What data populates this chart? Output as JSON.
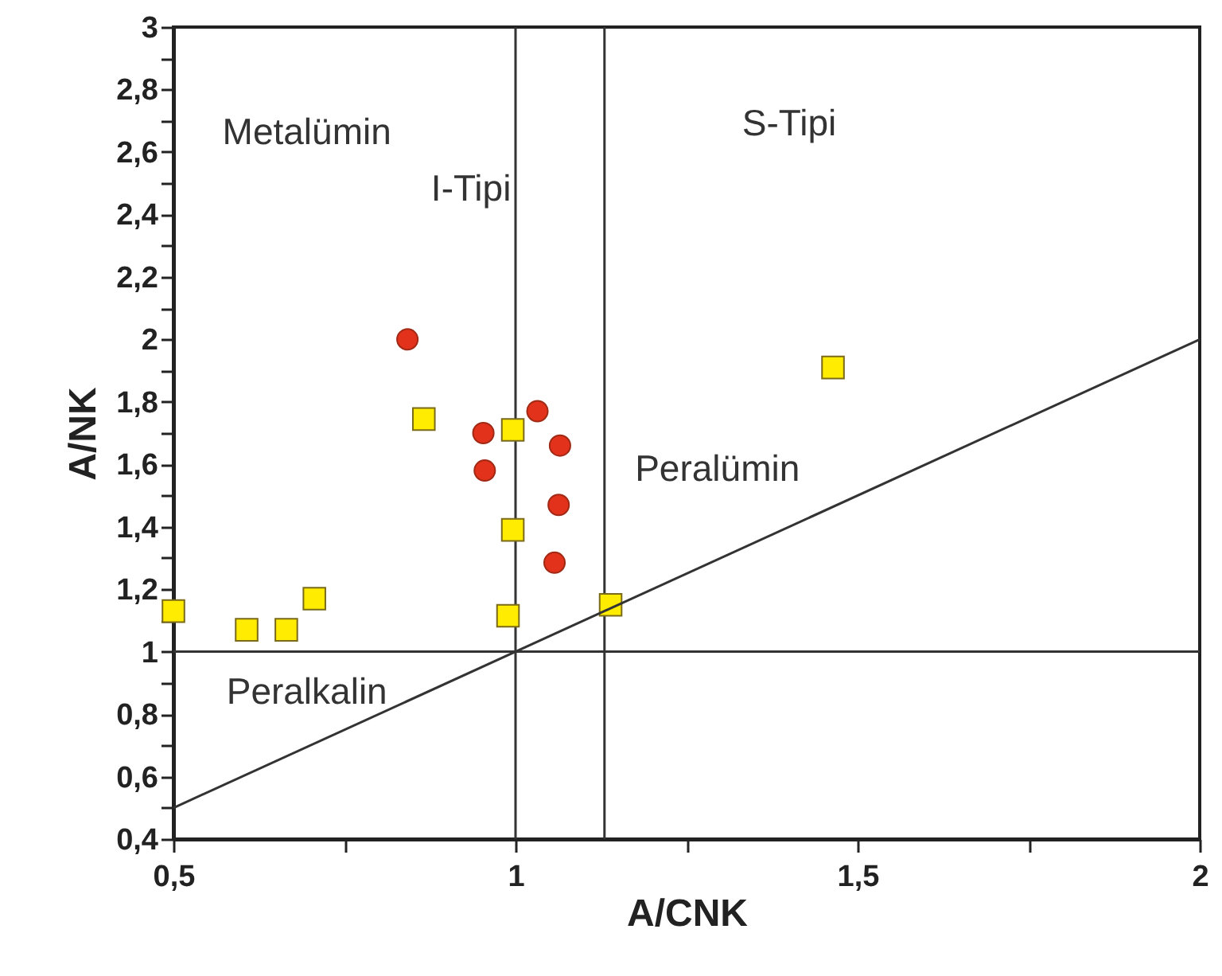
{
  "chart_data": {
    "type": "scatter",
    "xlabel": "A/CNK",
    "ylabel": "A/NK",
    "xlim": [
      0.5,
      2
    ],
    "ylim": [
      0.4,
      3
    ],
    "xticks": [
      {
        "value": 0.5,
        "label": "0,5"
      },
      1,
      {
        "value": 0.75,
        "label": null
      },
      {
        "value": 1.25,
        "label": null
      },
      {
        "value": 1.5,
        "label": "1,5"
      },
      {
        "value": 1.75,
        "label": null
      },
      2
    ],
    "yticks": [
      {
        "value": 0.4,
        "label": "0,4"
      },
      {
        "value": 0.5,
        "label": null
      },
      {
        "value": 0.6,
        "label": "0,6"
      },
      {
        "value": 0.7,
        "label": null
      },
      {
        "value": 0.8,
        "label": "0,8"
      },
      {
        "value": 0.9,
        "label": null
      },
      1,
      {
        "value": 1.1,
        "label": null
      },
      {
        "value": 1.2,
        "label": "1,2"
      },
      {
        "value": 1.3,
        "label": null
      },
      {
        "value": 1.4,
        "label": "1,4"
      },
      {
        "value": 1.5,
        "label": null
      },
      {
        "value": 1.6,
        "label": "1,6"
      },
      {
        "value": 1.7,
        "label": null
      },
      {
        "value": 1.8,
        "label": "1,8"
      },
      {
        "value": 1.9,
        "label": null
      },
      2,
      {
        "value": 2.1,
        "label": null
      },
      {
        "value": 2.2,
        "label": "2,2"
      },
      {
        "value": 2.3,
        "label": null
      },
      {
        "value": 2.4,
        "label": "2,4"
      },
      {
        "value": 2.5,
        "label": null
      },
      {
        "value": 2.6,
        "label": "2,6"
      },
      {
        "value": 2.7,
        "label": null
      },
      {
        "value": 2.8,
        "label": "2,8"
      },
      {
        "value": 2.9,
        "label": null
      },
      3
    ],
    "grid": false,
    "series": [
      {
        "marker": "circle",
        "color": "#e3321c",
        "x": [
          0.842,
          0.953,
          0.955,
          1.032,
          1.065,
          1.063,
          1.057
        ],
        "values": [
          2.0,
          1.7,
          1.58,
          1.77,
          1.66,
          1.47,
          1.285
        ]
      },
      {
        "marker": "square",
        "color": "#ffec00",
        "x": [
          0.5,
          0.607,
          0.665,
          0.706,
          0.866,
          0.996,
          0.996,
          0.989,
          1.139,
          1.464
        ],
        "values": [
          1.13,
          1.07,
          1.07,
          1.17,
          1.745,
          1.71,
          1.39,
          1.115,
          1.15,
          1.91
        ]
      },
      {
        "type": "line",
        "color": "#333333",
        "x": [
          0.5,
          2
        ],
        "values": [
          0.5,
          2
        ]
      }
    ],
    "ref_lines": [
      {
        "axis": "x",
        "value": 1
      },
      {
        "axis": "x",
        "value": 1.13
      },
      {
        "axis": "y",
        "value": 1
      }
    ],
    "annotations": [
      "Metalümin",
      "I-Tipi",
      "S-Tipi",
      "Peralümin",
      "Peralkalin"
    ]
  }
}
